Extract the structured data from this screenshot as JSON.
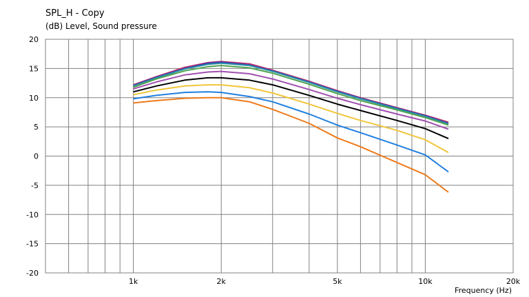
{
  "header": {
    "title": "SPL_H - Copy",
    "unit_line": "(dB)  Level, Sound pressure"
  },
  "chart_data": {
    "type": "line",
    "title": "SPL_H - Copy",
    "ylabel": "(dB)  Level, Sound pressure",
    "xlabel": "Frequency  (Hz)",
    "x_scale": "log",
    "xlim": [
      500,
      20000
    ],
    "ylim": [
      -20,
      20
    ],
    "grid": true,
    "x_ticks": [
      {
        "value": 1000,
        "label": "1k"
      },
      {
        "value": 2000,
        "label": "2k"
      },
      {
        "value": 5000,
        "label": "5k"
      },
      {
        "value": 10000,
        "label": "10k"
      },
      {
        "value": 20000,
        "label": "20k"
      }
    ],
    "y_ticks": [
      20,
      15,
      10,
      5,
      0,
      -5,
      -10,
      -15,
      -20
    ],
    "x": [
      1000,
      1200,
      1500,
      1800,
      2000,
      2500,
      3000,
      4000,
      5000,
      6000,
      8000,
      10000,
      12000
    ],
    "series": [
      {
        "color": "#c0306a",
        "values": [
          12.2,
          13.6,
          15.2,
          16.0,
          16.2,
          15.8,
          14.7,
          12.8,
          11.2,
          10.0,
          8.3,
          7.0,
          5.8
        ]
      },
      {
        "color": "#3b3bb0",
        "values": [
          12.1,
          13.5,
          15.0,
          15.9,
          16.1,
          15.6,
          14.6,
          12.7,
          11.1,
          9.9,
          8.2,
          6.9,
          5.6
        ]
      },
      {
        "color": "#2a8fa8",
        "values": [
          12.0,
          13.4,
          14.9,
          15.7,
          15.9,
          15.5,
          14.5,
          12.6,
          11.0,
          9.8,
          8.1,
          6.8,
          5.5
        ]
      },
      {
        "color": "#4fa34f",
        "values": [
          11.8,
          13.2,
          14.6,
          15.3,
          15.5,
          15.1,
          14.2,
          12.3,
          10.7,
          9.5,
          7.9,
          6.6,
          5.3
        ]
      },
      {
        "color": "#a04fb0",
        "values": [
          11.5,
          12.7,
          13.9,
          14.4,
          14.5,
          14.1,
          13.2,
          11.4,
          9.9,
          8.8,
          7.2,
          6.0,
          4.6
        ]
      },
      {
        "color": "#000000",
        "values": [
          11.0,
          12.0,
          13.0,
          13.4,
          13.4,
          13.0,
          12.2,
          10.4,
          8.9,
          7.8,
          6.1,
          4.7,
          3.0
        ]
      },
      {
        "color": "#f0c53a",
        "values": [
          10.5,
          11.3,
          12.0,
          12.2,
          12.2,
          11.7,
          10.8,
          8.9,
          7.3,
          6.1,
          4.4,
          2.8,
          0.6
        ]
      },
      {
        "color": "#1f7fe0",
        "values": [
          9.8,
          10.4,
          10.9,
          11.0,
          10.9,
          10.2,
          9.3,
          7.2,
          5.3,
          4.0,
          1.9,
          0.2,
          -2.7
        ]
      },
      {
        "color": "#ee7a1a",
        "values": [
          9.1,
          9.5,
          9.9,
          10.0,
          10.0,
          9.3,
          8.0,
          5.6,
          3.1,
          1.6,
          -1.1,
          -3.2,
          -6.2
        ]
      }
    ]
  }
}
